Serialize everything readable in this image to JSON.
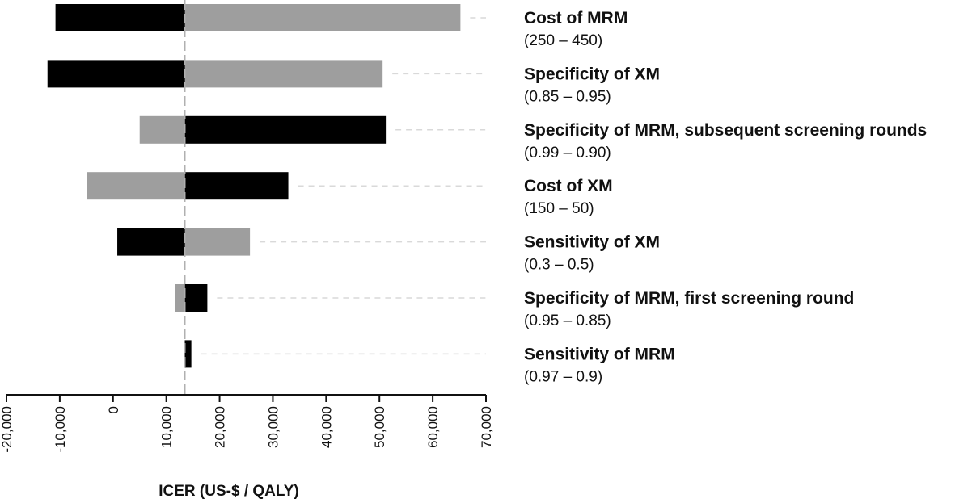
{
  "chart_data": {
    "type": "bar",
    "subtype": "tornado",
    "title": "",
    "xlabel": "ICER (US-$ / QALY)",
    "ylabel": "",
    "xlim": [
      -20000,
      70000
    ],
    "base_value": 13500,
    "x_ticks": [
      -20000,
      -10000,
      0,
      10000,
      20000,
      30000,
      40000,
      50000,
      60000,
      70000
    ],
    "x_tick_labels": [
      "-20,000",
      "-10,000",
      "0",
      "10,000",
      "20,000",
      "30,000",
      "40,000",
      "50,000",
      "60,000",
      "70,000"
    ],
    "colors": {
      "black_bar": "#000000",
      "gray_bar": "#9e9e9e",
      "guide_line": "#d9d9d9",
      "base_line": "#b0b0b0",
      "axis": "#111111"
    },
    "parameters": [
      {
        "name": "Cost of MRM",
        "range": "(250 – 450)",
        "black_value": -10800,
        "gray_value": 65200
      },
      {
        "name": "Specificity of XM",
        "range": "(0.85 – 0.95)",
        "black_value": -12300,
        "gray_value": 50600
      },
      {
        "name": "Specificity of MRM, subsequent screening rounds",
        "range": "(0.99 – 0.90)",
        "black_value": 51200,
        "gray_value": 5000
      },
      {
        "name": "Cost of XM",
        "range": "(150 – 50)",
        "black_value": 32900,
        "gray_value": -4900
      },
      {
        "name": "Sensitivity of XM",
        "range": "(0.3 – 0.5)",
        "black_value": 800,
        "gray_value": 25700
      },
      {
        "name": "Specificity of MRM, first screening round",
        "range": "(0.95 – 0.85)",
        "black_value": 17700,
        "gray_value": 11600
      },
      {
        "name": "Sensitivity of MRM",
        "range": "(0.97 – 0.9)",
        "black_value": 14700,
        "gray_value": 13300
      }
    ]
  }
}
